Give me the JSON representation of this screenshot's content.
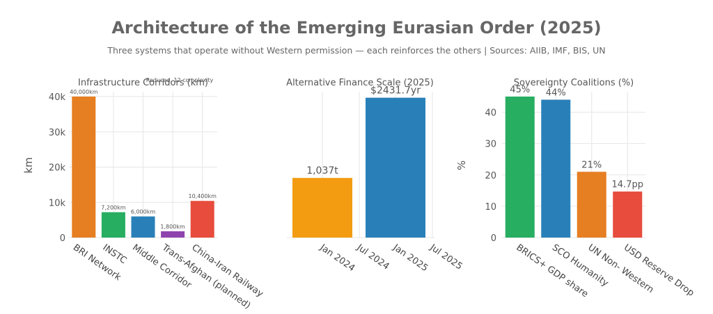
{
  "title": "Architecture of the Emerging Eurasian Order (2025)",
  "subtitle": "Three systems that operate without Western permission — each reinforces the others | Sources: AIIB, IMF, BIS, UN",
  "chart_data": [
    {
      "type": "bar",
      "title": "Infrastructure Corridors (km)",
      "overlay_text": "Reduced, 12 complexity",
      "xlabel": "",
      "ylabel": "km",
      "ylim": [
        0,
        40000
      ],
      "yticks": [
        0,
        10000,
        20000,
        30000,
        40000
      ],
      "ytick_labels": [
        "0",
        "10k",
        "20k",
        "30k",
        "40k"
      ],
      "categories": [
        "BRI Network",
        "INSTC",
        "Middle Corridor",
        "Trans-Afghan (planned)",
        "China-Iran Railway"
      ],
      "values": [
        40000,
        7200,
        6000,
        1800,
        10400
      ],
      "data_labels": [
        "40,000km",
        "7,200km",
        "6,000km",
        "1,800km",
        "10,400km"
      ],
      "colors": [
        "#e67e22",
        "#27ae60",
        "#2980b9",
        "#8e44ad",
        "#e74c3c"
      ],
      "grid": true
    },
    {
      "type": "bar",
      "title": "Alternative Finance Scale (2025)",
      "xlabel": "",
      "ylabel": "",
      "x_axis": "date",
      "xticks": [
        "Jan 2024",
        "Jul 2024",
        "Jan 2025",
        "Jul 2025"
      ],
      "categories": [
        "2024",
        "2025"
      ],
      "values": [
        1037,
        2431.7
      ],
      "data_labels": [
        "1,037t",
        "$2431.7yr"
      ],
      "colors": [
        "#f39c12",
        "#2980b9"
      ],
      "grid": true
    },
    {
      "type": "bar",
      "title": "Sovereignty Coalitions (%)",
      "xlabel": "",
      "ylabel": "%",
      "ylim": [
        0,
        45
      ],
      "yticks": [
        0,
        10,
        20,
        30,
        40
      ],
      "ytick_labels": [
        "0",
        "10",
        "20",
        "30",
        "40"
      ],
      "categories": [
        "BRICS+ GDP share",
        "SCO Humanity",
        "UN Non- Western",
        "USD Reserve Drop"
      ],
      "values": [
        45,
        44,
        21,
        14.7
      ],
      "data_labels": [
        "45%",
        "44%",
        "21%",
        "14.7pp"
      ],
      "colors": [
        "#27ae60",
        "#2980b9",
        "#e67e22",
        "#e74c3c"
      ],
      "grid": true
    }
  ]
}
